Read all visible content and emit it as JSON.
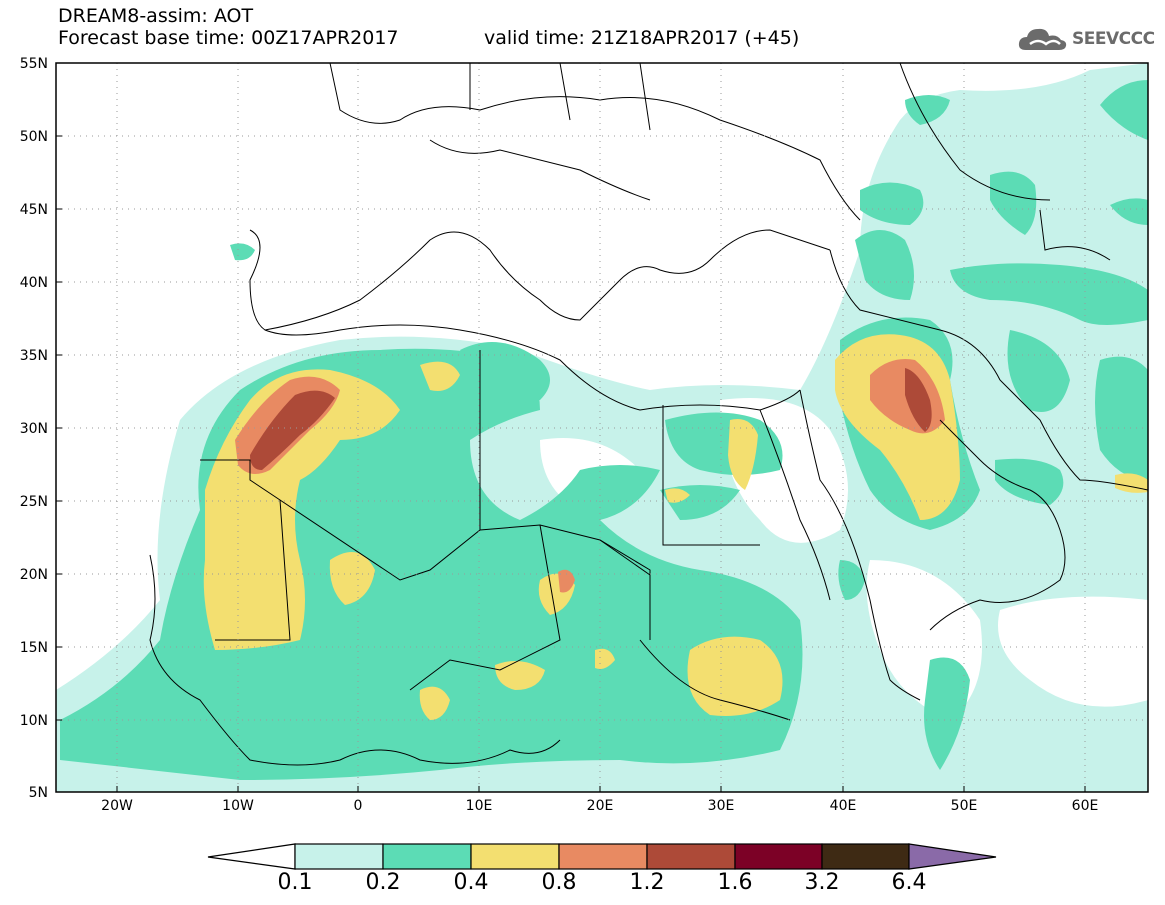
{
  "header": {
    "line1": "DREAM8-assim: AOT",
    "line2": "Forecast base time: 00Z17APR2017",
    "valid": "valid time: 21Z18APR2017 (+45)"
  },
  "logo": {
    "text": "SEEVCCC",
    "icon": "cloud-icon",
    "color": "#6b6b6b"
  },
  "map": {
    "lat_labels": [
      "55N",
      "50N",
      "45N",
      "40N",
      "35N",
      "30N",
      "25N",
      "20N",
      "15N",
      "10N",
      "5N"
    ],
    "lon_labels": [
      "20W",
      "10W",
      "0",
      "10E",
      "20E",
      "30E",
      "40E",
      "50E",
      "60E"
    ],
    "lat_range": [
      5,
      55
    ],
    "lon_range": [
      -25,
      65
    ],
    "grid": "dotted",
    "field": "AOT"
  },
  "colorbar": {
    "labels": [
      "0.1",
      "0.2",
      "0.4",
      "0.8",
      "1.2",
      "1.6",
      "3.2",
      "6.4"
    ],
    "colors": [
      "#c7f2ea",
      "#5cdcb5",
      "#f3df70",
      "#e88a62",
      "#ad4a38",
      "#7c0126",
      "#3e2a14",
      "#8a6aa8"
    ]
  }
}
